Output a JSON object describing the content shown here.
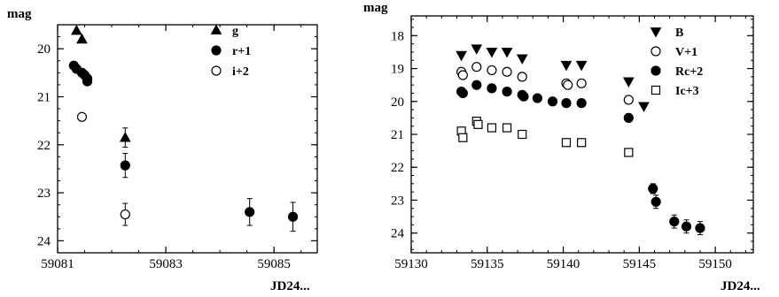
{
  "chart_data": [
    {
      "type": "scatter",
      "title": "",
      "xlabel": "JD24...",
      "ylabel": "mag",
      "xlim": [
        59081,
        59085.8
      ],
      "ylim": [
        24.25,
        19.5
      ],
      "y_inverted": true,
      "xticks": [
        59081,
        59083,
        59085
      ],
      "yticks": [
        20,
        21,
        22,
        23,
        24
      ],
      "grid": false,
      "legend_position": "top-right",
      "series": [
        {
          "name": "g",
          "marker": "triangle-up",
          "filled": true,
          "points": [
            {
              "x": 59081.35,
              "y": 19.62
            },
            {
              "x": 59081.45,
              "y": 19.8
            },
            {
              "x": 59082.25,
              "y": 21.85,
              "err": 0.2
            }
          ]
        },
        {
          "name": "r+1",
          "marker": "circle",
          "filled": true,
          "points": [
            {
              "x": 59081.3,
              "y": 20.35
            },
            {
              "x": 59081.35,
              "y": 20.42
            },
            {
              "x": 59081.45,
              "y": 20.5
            },
            {
              "x": 59081.5,
              "y": 20.55
            },
            {
              "x": 59081.55,
              "y": 20.62
            },
            {
              "x": 59081.55,
              "y": 20.68
            },
            {
              "x": 59082.25,
              "y": 22.43,
              "err": 0.25
            },
            {
              "x": 59084.55,
              "y": 23.4,
              "err": 0.28
            },
            {
              "x": 59085.35,
              "y": 23.5,
              "err": 0.3
            }
          ]
        },
        {
          "name": "i+2",
          "marker": "circle",
          "filled": false,
          "points": [
            {
              "x": 59081.45,
              "y": 21.42
            },
            {
              "x": 59082.25,
              "y": 23.45,
              "err": 0.23
            }
          ]
        }
      ]
    },
    {
      "type": "scatter",
      "title": "",
      "xlabel": "JD24...",
      "ylabel": "mag",
      "xlim": [
        59130,
        59152.5
      ],
      "ylim": [
        24.6,
        17.4
      ],
      "y_inverted": true,
      "xticks": [
        59130,
        59135,
        59140,
        59145,
        59150
      ],
      "yticks": [
        18,
        19,
        20,
        21,
        22,
        23,
        24
      ],
      "grid": false,
      "legend_position": "top-right",
      "series": [
        {
          "name": "B",
          "marker": "triangle-down",
          "filled": true,
          "points": [
            {
              "x": 59133.3,
              "y": 18.6
            },
            {
              "x": 59134.3,
              "y": 18.4
            },
            {
              "x": 59135.3,
              "y": 18.5
            },
            {
              "x": 59136.3,
              "y": 18.5
            },
            {
              "x": 59137.3,
              "y": 18.7
            },
            {
              "x": 59140.2,
              "y": 18.9
            },
            {
              "x": 59141.2,
              "y": 18.9
            },
            {
              "x": 59144.3,
              "y": 19.4
            },
            {
              "x": 59145.3,
              "y": 20.15
            }
          ]
        },
        {
          "name": "V+1",
          "marker": "circle",
          "filled": false,
          "points": [
            {
              "x": 59133.3,
              "y": 19.1
            },
            {
              "x": 59133.4,
              "y": 19.2
            },
            {
              "x": 59134.3,
              "y": 18.95
            },
            {
              "x": 59135.3,
              "y": 19.05
            },
            {
              "x": 59136.3,
              "y": 19.1
            },
            {
              "x": 59137.3,
              "y": 19.25
            },
            {
              "x": 59140.2,
              "y": 19.45
            },
            {
              "x": 59140.3,
              "y": 19.5
            },
            {
              "x": 59141.2,
              "y": 19.45
            },
            {
              "x": 59144.3,
              "y": 19.95
            }
          ]
        },
        {
          "name": "Rc+2",
          "marker": "circle",
          "filled": true,
          "points": [
            {
              "x": 59133.3,
              "y": 19.7
            },
            {
              "x": 59133.4,
              "y": 19.75
            },
            {
              "x": 59134.3,
              "y": 19.5
            },
            {
              "x": 59135.3,
              "y": 19.6
            },
            {
              "x": 59136.3,
              "y": 19.7
            },
            {
              "x": 59137.3,
              "y": 19.8
            },
            {
              "x": 59137.4,
              "y": 19.85
            },
            {
              "x": 59138.3,
              "y": 19.9
            },
            {
              "x": 59139.3,
              "y": 20.0
            },
            {
              "x": 59140.2,
              "y": 20.05
            },
            {
              "x": 59141.2,
              "y": 20.05
            },
            {
              "x": 59144.3,
              "y": 20.5
            },
            {
              "x": 59145.9,
              "y": 22.65,
              "err": 0.15
            },
            {
              "x": 59146.1,
              "y": 23.05,
              "err": 0.2
            },
            {
              "x": 59147.3,
              "y": 23.65,
              "err": 0.2
            },
            {
              "x": 59148.1,
              "y": 23.8,
              "err": 0.2
            },
            {
              "x": 59149.0,
              "y": 23.85,
              "err": 0.2
            }
          ]
        },
        {
          "name": "Ic+3",
          "marker": "square",
          "filled": false,
          "points": [
            {
              "x": 59133.3,
              "y": 20.9
            },
            {
              "x": 59133.4,
              "y": 21.1
            },
            {
              "x": 59134.3,
              "y": 20.6
            },
            {
              "x": 59134.4,
              "y": 20.7
            },
            {
              "x": 59135.3,
              "y": 20.8
            },
            {
              "x": 59136.3,
              "y": 20.8
            },
            {
              "x": 59137.3,
              "y": 21.0
            },
            {
              "x": 59140.2,
              "y": 21.25
            },
            {
              "x": 59141.2,
              "y": 21.25
            },
            {
              "x": 59144.3,
              "y": 21.55
            }
          ]
        }
      ]
    }
  ]
}
